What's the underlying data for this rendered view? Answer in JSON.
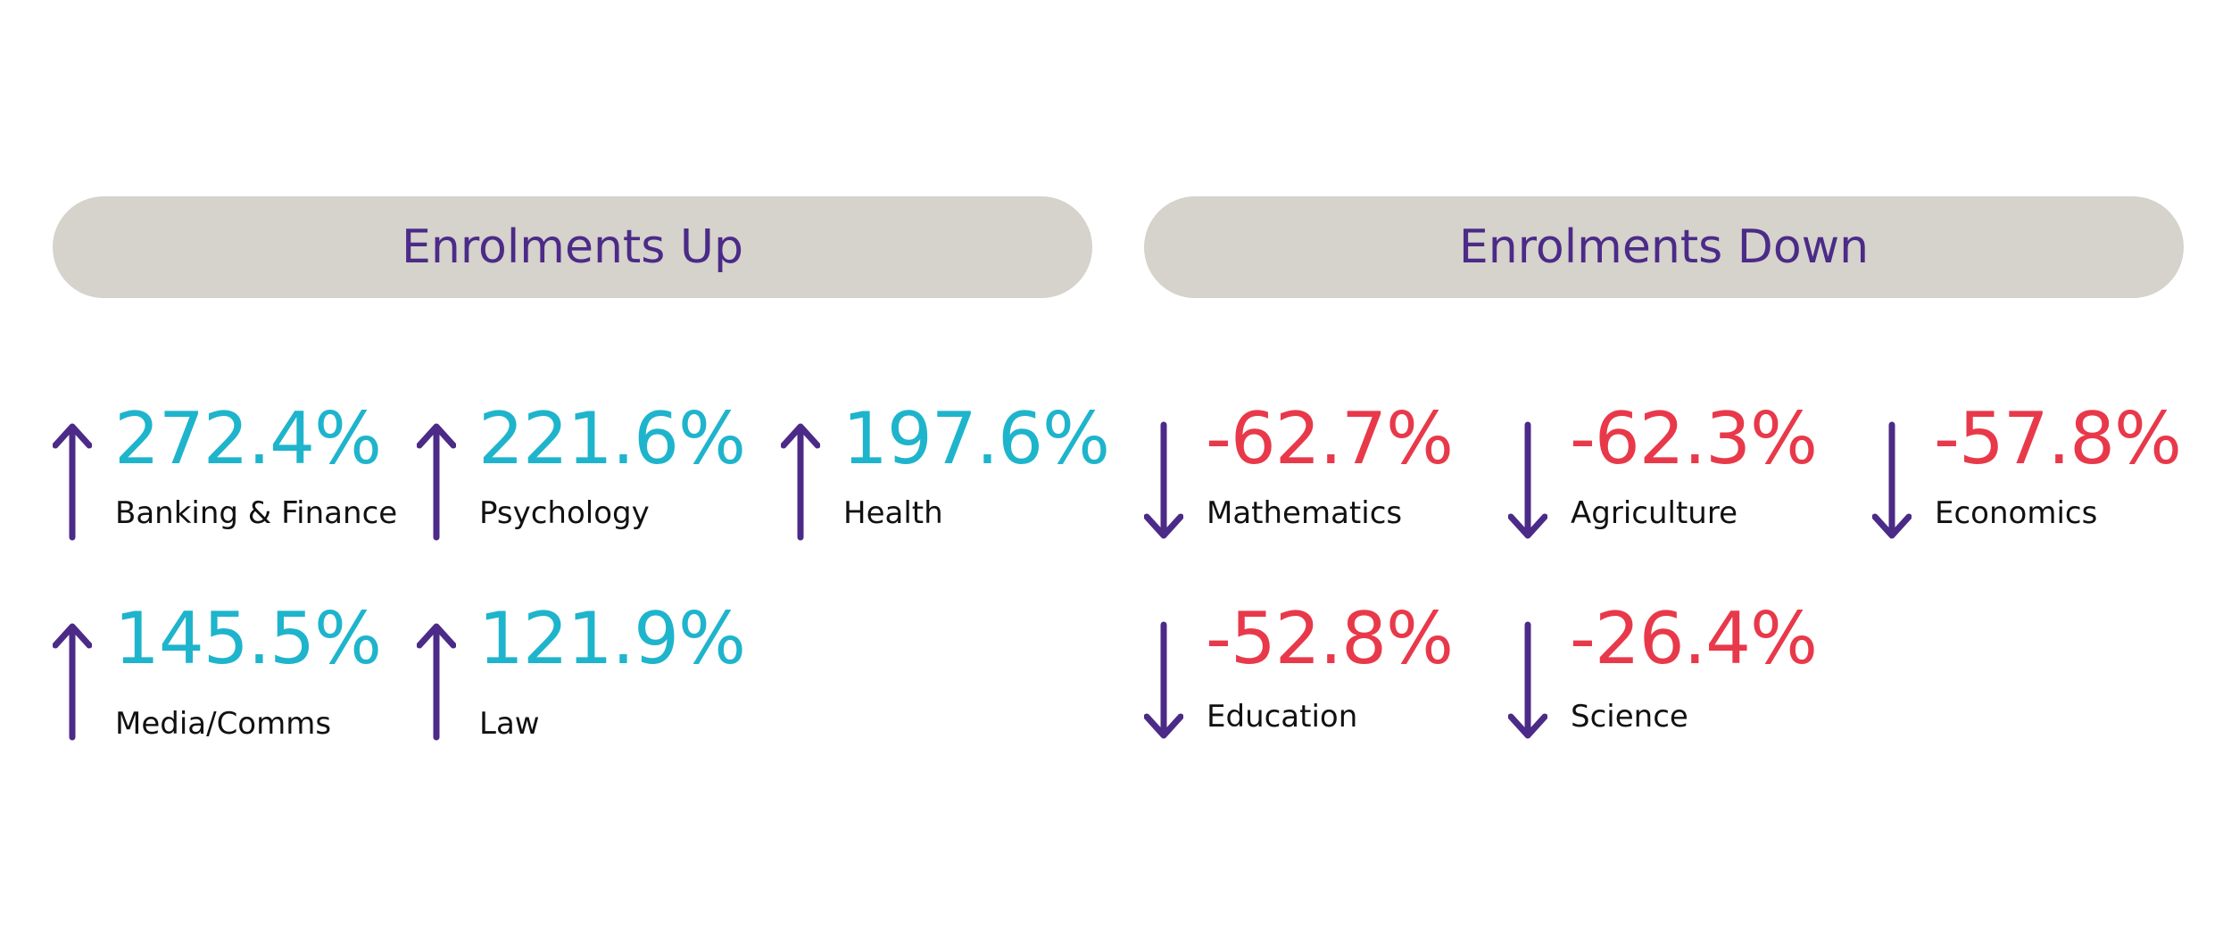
{
  "colors": {
    "header_bg": "#d6d2cc",
    "header_text": "#4b2b87",
    "arrow": "#4b2b87",
    "up_value": "#1eb4cc",
    "down_value": "#e8394a",
    "label": "#111111"
  },
  "headers": {
    "up": "Enrolments Up",
    "down": "Enrolments Down"
  },
  "up": [
    {
      "value": "272.4%",
      "label": "Banking & Finance",
      "icon": "arrow-up-icon"
    },
    {
      "value": "221.6%",
      "label": "Psychology",
      "icon": "arrow-up-icon"
    },
    {
      "value": "197.6%",
      "label": "Health",
      "icon": "arrow-up-icon"
    },
    {
      "value": "145.5%",
      "label": "Media/Comms",
      "icon": "arrow-up-icon"
    },
    {
      "value": "121.9%",
      "label": "Law",
      "icon": "arrow-up-icon"
    }
  ],
  "down": [
    {
      "value": "-62.7%",
      "label": "Mathematics",
      "icon": "arrow-down-icon"
    },
    {
      "value": "-62.3%",
      "label": "Agriculture",
      "icon": "arrow-down-icon"
    },
    {
      "value": "-57.8%",
      "label": "Economics",
      "icon": "arrow-down-icon"
    },
    {
      "value": "-52.8%",
      "label": "Education",
      "icon": "arrow-down-icon"
    },
    {
      "value": "-26.4%",
      "label": "Science",
      "icon": "arrow-down-icon"
    }
  ]
}
